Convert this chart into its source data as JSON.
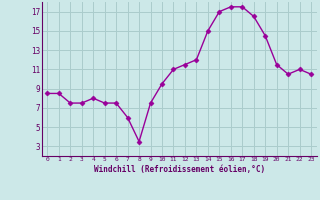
{
  "x": [
    0,
    1,
    2,
    3,
    4,
    5,
    6,
    7,
    8,
    9,
    10,
    11,
    12,
    13,
    14,
    15,
    16,
    17,
    18,
    19,
    20,
    21,
    22,
    23
  ],
  "y": [
    8.5,
    8.5,
    7.5,
    7.5,
    8.0,
    7.5,
    7.5,
    6.0,
    3.5,
    7.5,
    9.5,
    11.0,
    11.5,
    12.0,
    15.0,
    17.0,
    17.5,
    17.5,
    16.5,
    14.5,
    11.5,
    10.5,
    11.0,
    10.5
  ],
  "xlabel": "Windchill (Refroidissement éolien,°C)",
  "xlim": [
    -0.5,
    23.5
  ],
  "ylim": [
    2,
    18
  ],
  "yticks": [
    3,
    5,
    7,
    9,
    11,
    13,
    15,
    17
  ],
  "xticks": [
    0,
    1,
    2,
    3,
    4,
    5,
    6,
    7,
    8,
    9,
    10,
    11,
    12,
    13,
    14,
    15,
    16,
    17,
    18,
    19,
    20,
    21,
    22,
    23
  ],
  "line_color": "#990099",
  "marker": "D",
  "marker_size": 2.5,
  "bg_color": "#cce8e8",
  "grid_color": "#aacccc",
  "label_color": "#660066",
  "tick_color": "#660066",
  "spine_color": "#660066"
}
